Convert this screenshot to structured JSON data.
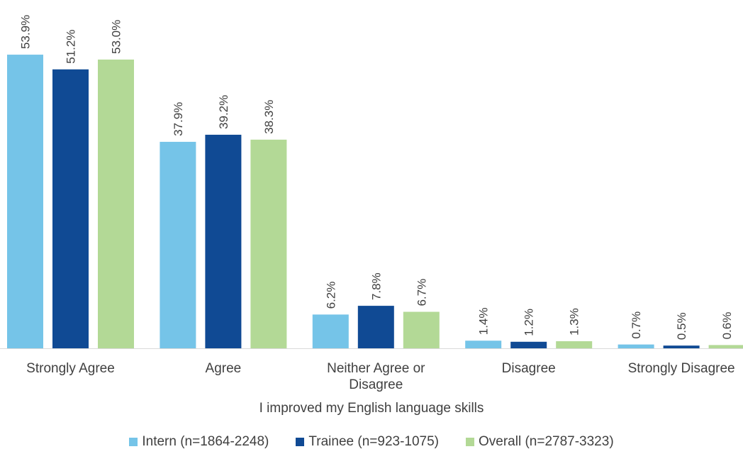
{
  "chart_data": {
    "type": "bar",
    "title": "",
    "xlabel": "I improved my English language skills",
    "ylabel": "",
    "categories": [
      [
        "Strongly Agree"
      ],
      [
        "Agree"
      ],
      [
        "Neither Agree or",
        "Disagree"
      ],
      [
        "Disagree"
      ],
      [
        "Strongly Disagree"
      ]
    ],
    "series": [
      {
        "name": "Intern (n=1864-2248)",
        "color": "#75c4e8",
        "values": [
          53.9,
          37.9,
          6.2,
          1.4,
          0.7
        ],
        "labels": [
          "53.9%",
          "37.9%",
          "6.2%",
          "1.4%",
          "0.7%"
        ]
      },
      {
        "name": "Trainee (n=923-1075)",
        "color": "#104a94",
        "values": [
          51.2,
          39.2,
          7.8,
          1.2,
          0.5
        ],
        "labels": [
          "51.2%",
          "39.2%",
          "7.8%",
          "1.2%",
          "0.5%"
        ]
      },
      {
        "name": "Overall (n=2787-3323)",
        "color": "#b3d996",
        "values": [
          53.0,
          38.3,
          6.7,
          1.3,
          0.6
        ],
        "labels": [
          "53.0%",
          "38.3%",
          "6.7%",
          "1.3%",
          "0.6%"
        ]
      }
    ],
    "ylim": [
      0,
      54
    ],
    "grid": false,
    "legend_position": "bottom"
  }
}
